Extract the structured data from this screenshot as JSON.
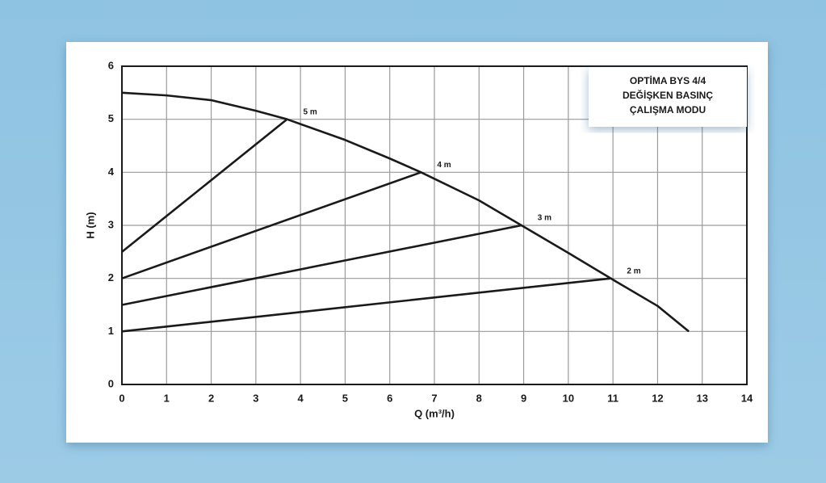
{
  "chart_data": {
    "type": "line",
    "title": [
      "OPTİMA BYS 4/4",
      "DEĞİŞKEN BASINÇ",
      "ÇALIŞMA MODU"
    ],
    "x_label": "Q (m³/h)",
    "y_label": "H (m)",
    "xlim": [
      0,
      14
    ],
    "ylim": [
      0,
      6
    ],
    "xticks": [
      0,
      1,
      2,
      3,
      4,
      5,
      6,
      7,
      8,
      9,
      10,
      11,
      12,
      13,
      14
    ],
    "yticks": [
      0,
      1,
      2,
      3,
      4,
      5,
      6
    ],
    "grid": true,
    "series": [
      {
        "color": "#1a1a1a",
        "x": [
          0,
          1,
          2,
          3,
          3.7,
          5,
          6,
          6.7,
          8,
          8.95,
          10,
          10.95,
          12,
          12.7
        ],
        "values": [
          5.5,
          5.45,
          5.36,
          5.16,
          5.0,
          4.61,
          4.26,
          4.0,
          3.47,
          3.0,
          2.48,
          2.0,
          1.48,
          1.0
        ]
      },
      {
        "name": "5 m",
        "color": "#1a1a1a",
        "x": [
          0,
          3.7
        ],
        "values": [
          2.5,
          5.0
        ]
      },
      {
        "name": "4 m",
        "color": "#1a1a1a",
        "x": [
          0,
          6.7
        ],
        "values": [
          2.0,
          4.0
        ]
      },
      {
        "name": "3 m",
        "color": "#1a1a1a",
        "x": [
          0,
          8.95
        ],
        "values": [
          1.5,
          3.0
        ]
      },
      {
        "name": "2 m",
        "color": "#1a1a1a",
        "x": [
          0,
          10.95
        ],
        "values": [
          1.0,
          2.0
        ]
      }
    ]
  }
}
